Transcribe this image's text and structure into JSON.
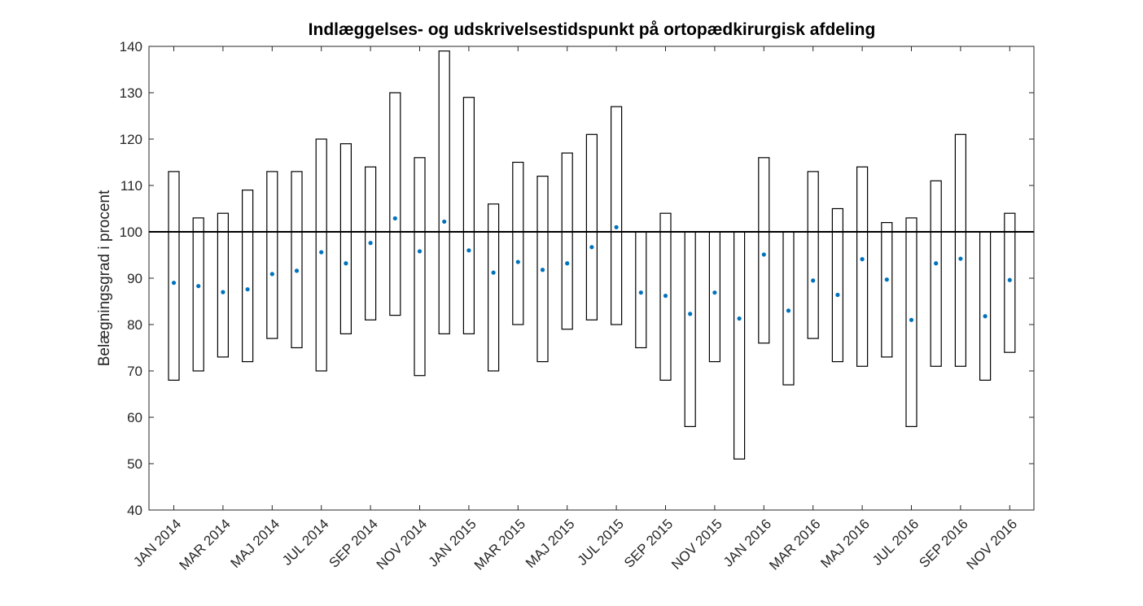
{
  "chart_data": {
    "type": "box",
    "title": "Indlæggelses- og udskrivelsestidspunkt på ortopædkirurgisk afdeling",
    "xlabel": "",
    "ylabel": "Belægningsgrad i procent",
    "ylim": [
      40,
      140
    ],
    "yticks": [
      40,
      50,
      60,
      70,
      80,
      90,
      100,
      110,
      120,
      130,
      140
    ],
    "reference_line": 100,
    "grid": false,
    "categories": [
      "JAN 2014",
      "FEB 2014",
      "MAR 2014",
      "APR 2014",
      "MAJ 2014",
      "JUN 2014",
      "JUL 2014",
      "AUG 2014",
      "SEP 2014",
      "OKT 2014",
      "NOV 2014",
      "DEC 2014",
      "JAN 2015",
      "FEB 2015",
      "MAR 2015",
      "APR 2015",
      "MAJ 2015",
      "JUN 2015",
      "JUL 2015",
      "AUG 2015",
      "SEP 2015",
      "OKT 2015",
      "NOV 2015",
      "DEC 2015",
      "JAN 2016",
      "FEB 2016",
      "MAR 2016",
      "APR 2016",
      "MAJ 2016",
      "JUN 2016",
      "JUL 2016",
      "AUG 2016",
      "SEP 2016",
      "OKT 2016",
      "NOV 2016"
    ],
    "xtick_labels_shown": [
      "JAN 2014",
      "MAR 2014",
      "MAJ 2014",
      "JUL 2014",
      "SEP 2014",
      "NOV 2014",
      "JAN 2015",
      "MAR 2015",
      "MAJ 2015",
      "JUL 2015",
      "SEP 2015",
      "NOV 2015",
      "JAN 2016",
      "MAR 2016",
      "MAJ 2016",
      "JUL 2016",
      "SEP 2016",
      "NOV 2016"
    ],
    "series": [
      {
        "min": [
          68,
          70,
          73,
          72,
          77,
          75,
          70,
          78,
          81,
          82,
          69,
          78,
          78,
          70,
          80,
          72,
          79,
          81,
          80,
          75,
          68,
          58,
          72,
          51,
          76,
          67,
          77,
          72,
          71,
          73,
          58,
          71,
          71,
          68,
          74
        ],
        "max": [
          113,
          103,
          104,
          109,
          113,
          113,
          120,
          119,
          114,
          130,
          116,
          139,
          129,
          106,
          115,
          112,
          117,
          121,
          127,
          100,
          104,
          100,
          100,
          100,
          116,
          100,
          113,
          105,
          114,
          102,
          103,
          111,
          121,
          100,
          104
        ],
        "mean": [
          89,
          88.3,
          87,
          87.6,
          90.9,
          91.6,
          95.6,
          93.2,
          97.6,
          102.9,
          95.8,
          102.2,
          96,
          91.2,
          93.5,
          91.8,
          93.2,
          96.7,
          101,
          86.9,
          86.2,
          82.3,
          86.9,
          81.3,
          95.1,
          83,
          89.5,
          86.4,
          94.1,
          89.7,
          81,
          93.2,
          94.2,
          81.8,
          89.6
        ]
      }
    ],
    "colors": {
      "mean_marker": "#0072bd",
      "box_stroke": "#000000",
      "reference_line": "#000000",
      "axes": "#262626"
    }
  }
}
